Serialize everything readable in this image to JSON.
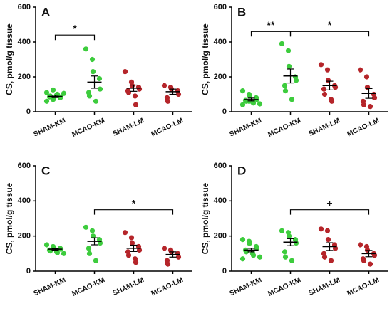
{
  "chart_data": [
    {
      "type": "dot",
      "panel": "A",
      "ylabel": "CS, pmol/g tissue",
      "categories": [
        "SHAM-KM",
        "MCAO-KM",
        "SHAM-LM",
        "MCAO-LM"
      ],
      "colors": [
        "#3dcc3d",
        "#3dcc3d",
        "#b5252a",
        "#b5252a"
      ],
      "points": [
        [
          60,
          70,
          75,
          80,
          85,
          85,
          90,
          95,
          100,
          105,
          110,
          125
        ],
        [
          360,
          300,
          230,
          190,
          130,
          110,
          90,
          60
        ],
        [
          230,
          170,
          150,
          140,
          130,
          120,
          110,
          90,
          40
        ],
        [
          150,
          140,
          130,
          120,
          100,
          80,
          60
        ]
      ],
      "means": [
        88,
        170,
        135,
        115
      ],
      "sems": [
        7,
        35,
        18,
        15
      ],
      "annotations": [
        {
          "from": 0,
          "to": 1,
          "y": 440,
          "label": "*"
        }
      ],
      "ylim": [
        0,
        600
      ],
      "yticks": [
        0,
        200,
        400,
        600
      ]
    },
    {
      "type": "dot",
      "panel": "B",
      "ylabel": "CS, pmol/g tissue",
      "categories": [
        "SHAM-KM",
        "MCAO-KM",
        "SHAM-LM",
        "MCAO-LM"
      ],
      "colors": [
        "#3dcc3d",
        "#3dcc3d",
        "#b5252a",
        "#b5252a"
      ],
      "points": [
        [
          120,
          100,
          90,
          80,
          70,
          65,
          60,
          55,
          50,
          45,
          40,
          60
        ],
        [
          390,
          350,
          260,
          200,
          180,
          150,
          120,
          70
        ],
        [
          270,
          240,
          180,
          150,
          140,
          130,
          100,
          70,
          60
        ],
        [
          240,
          200,
          140,
          100,
          80,
          60,
          40,
          30
        ]
      ],
      "means": [
        70,
        205,
        150,
        105
      ],
      "sems": [
        8,
        40,
        25,
        28
      ],
      "annotations": [
        {
          "from": 0,
          "to": 1,
          "y": 460,
          "label": "**"
        },
        {
          "from": 1,
          "to": 3,
          "y": 460,
          "label": "*"
        }
      ],
      "ylim": [
        0,
        600
      ],
      "yticks": [
        0,
        200,
        400,
        600
      ]
    },
    {
      "type": "dot",
      "panel": "C",
      "ylabel": "CS, pmol/g tissue",
      "categories": [
        "SHAM-KM",
        "MCAO-KM",
        "SHAM-LM",
        "MCAO-LM"
      ],
      "colors": [
        "#3dcc3d",
        "#3dcc3d",
        "#b5252a",
        "#b5252a"
      ],
      "points": [
        [
          150,
          140,
          135,
          130,
          125,
          120,
          115,
          110,
          105,
          100
        ],
        [
          250,
          230,
          200,
          180,
          160,
          130,
          100,
          60
        ],
        [
          220,
          190,
          160,
          140,
          120,
          110,
          90,
          70,
          50
        ],
        [
          130,
          120,
          110,
          100,
          80,
          60,
          40
        ]
      ],
      "means": [
        125,
        170,
        130,
        95
      ],
      "sems": [
        5,
        20,
        18,
        15
      ],
      "annotations": [
        {
          "from": 1,
          "to": 3,
          "y": 350,
          "label": "*"
        }
      ],
      "ylim": [
        0,
        600
      ],
      "yticks": [
        0,
        200,
        400,
        600
      ]
    },
    {
      "type": "dot",
      "panel": "D",
      "ylabel": "CS, pmol/g tissue",
      "categories": [
        "SHAM-KM",
        "MCAO-KM",
        "SHAM-LM",
        "MCAO-LM"
      ],
      "colors": [
        "#3dcc3d",
        "#3dcc3d",
        "#b5252a",
        "#b5252a"
      ],
      "points": [
        [
          180,
          170,
          160,
          140,
          130,
          120,
          110,
          100,
          90,
          80,
          70,
          160
        ],
        [
          230,
          220,
          200,
          180,
          160,
          110,
          80,
          60
        ],
        [
          240,
          230,
          180,
          150,
          130,
          100,
          80,
          60
        ],
        [
          150,
          140,
          120,
          100,
          90,
          70,
          60,
          40
        ]
      ],
      "means": [
        120,
        165,
        140,
        100
      ],
      "sems": [
        10,
        20,
        22,
        18
      ],
      "annotations": [
        {
          "from": 1,
          "to": 3,
          "y": 350,
          "label": "+"
        }
      ],
      "ylim": [
        0,
        600
      ],
      "yticks": [
        0,
        200,
        400,
        600
      ]
    }
  ]
}
